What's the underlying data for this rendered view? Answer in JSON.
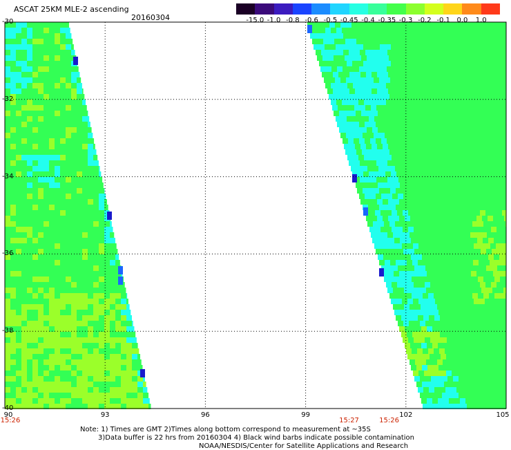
{
  "header": {
    "title": "ASCAT 25KM MLE-2 ascending",
    "date": "20160304"
  },
  "colorbar": {
    "labels": [
      "-15.0",
      "-1.0",
      "-0.8",
      "-0.6",
      "-0.5",
      "-0.45",
      "-0.4",
      "-0.35",
      "-0.3",
      "-0.2",
      "-0.1",
      "0.0",
      "1.0"
    ],
    "colors": [
      "#1a0025",
      "#3a0a7a",
      "#3b1bbf",
      "#1a44ff",
      "#1b8cff",
      "#20d5ff",
      "#27ffe3",
      "#38ff9a",
      "#43ff4b",
      "#8cff2e",
      "#d4ff1d",
      "#ffd51a",
      "#ff8a1a",
      "#ff3a1a"
    ]
  },
  "map": {
    "lon_labels": [
      "90",
      "93",
      "96",
      "99",
      "102",
      "105"
    ],
    "lat_labels": [
      "-30",
      "-32",
      "-34",
      "-36",
      "-38",
      "-40"
    ],
    "lon_range": [
      90,
      105
    ],
    "lat_range": [
      -40,
      -30
    ],
    "grid_lines": "dotted",
    "swath_colors": {
      "dominant": "#33ff55",
      "light": "#9bff2a",
      "cyan": "#22ffee",
      "blue": "#1a66ff",
      "dark_blue": "#1a1acc"
    }
  },
  "time_labels": [
    {
      "text": "15:26",
      "lon": 90
    },
    {
      "text": "15:27",
      "lon": 100.3
    },
    {
      "text": "15:26",
      "lon": 101.5
    }
  ],
  "notes": {
    "line1": "Note: 1) Times are GMT 2)Times along bottom correspond to measurement at ~35S",
    "line2": "3)Data buffer is 22 hrs from 20160304 4) Black wind barbs indicate possible contamination",
    "line3": "NOAA/NESDIS/Center for Satellite Applications and Research"
  }
}
